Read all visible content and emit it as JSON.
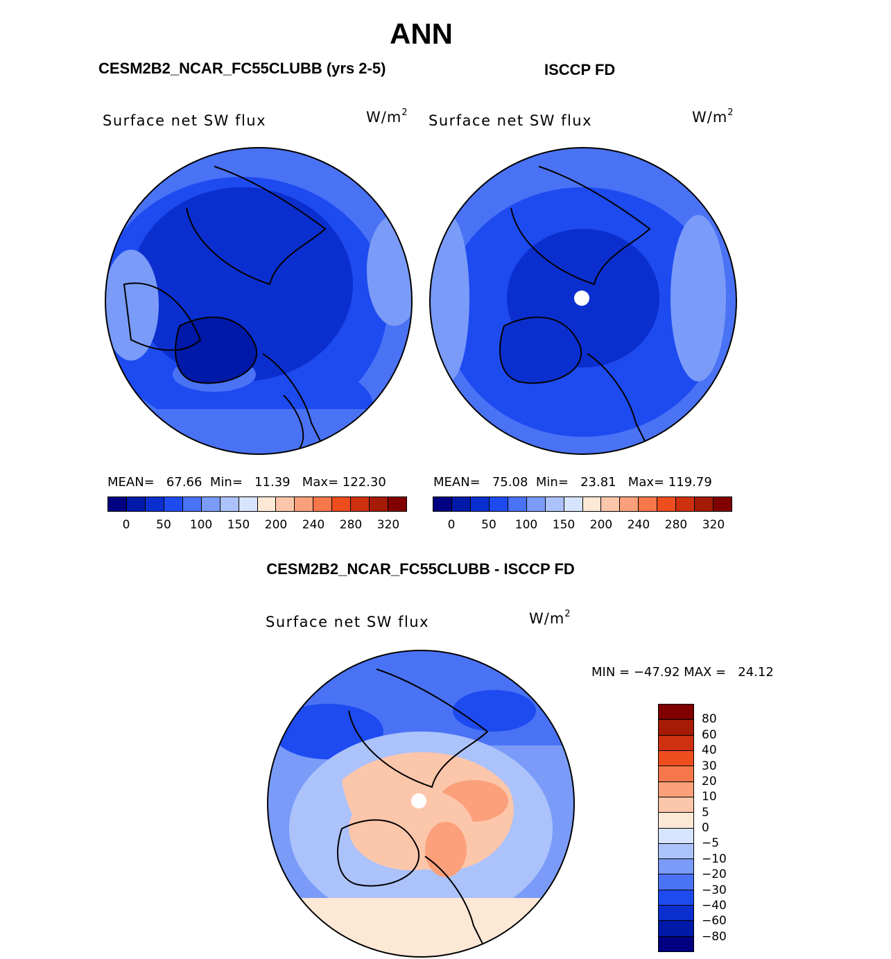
{
  "title": "ANN",
  "panels": {
    "model": {
      "heading": "CESM2B2_NCAR_FC55CLUBB (yrs 2-5)",
      "field": "Surface net SW flux",
      "units": "W/m",
      "units_exp": "2",
      "stats": "MEAN=   67.66  Min=   11.39   Max= 122.30"
    },
    "obs": {
      "heading": "ISCCP FD",
      "field": "Surface net SW flux",
      "units": "W/m",
      "units_exp": "2",
      "stats": "MEAN=   75.08  Min=   23.81   Max= 119.79"
    },
    "diff": {
      "heading": "CESM2B2_NCAR_FC55CLUBB - ISCCP FD",
      "field": "Surface net SW flux",
      "units": "W/m",
      "units_exp": "2",
      "stats": "MIN = −47.92 MAX =   24.12"
    }
  },
  "colorbar_main": {
    "colors": [
      "#000080",
      "#0019a8",
      "#0b2fcf",
      "#1e4bf0",
      "#4a72f5",
      "#7a9bf8",
      "#abc2fb",
      "#d6e4fd",
      "#fde8d6",
      "#fcc6ab",
      "#fba07a",
      "#f6774a",
      "#ee4d1e",
      "#cd3110",
      "#a51b05",
      "#800000"
    ],
    "labels": [
      "0",
      "50",
      "100",
      "150",
      "200",
      "240",
      "280",
      "320"
    ]
  },
  "colorbar_diff": {
    "colors": [
      "#800000",
      "#a51b05",
      "#cd3110",
      "#ee4d1e",
      "#f6774a",
      "#fba07a",
      "#fcc6ab",
      "#fde8d6",
      "#d6e4fd",
      "#abc2fb",
      "#7a9bf8",
      "#4a72f5",
      "#1e4bf0",
      "#0b2fcf",
      "#0019a8",
      "#000080"
    ],
    "labels": [
      "80",
      "60",
      "40",
      "30",
      "20",
      "10",
      "5",
      "0",
      "−5",
      "−10",
      "−20",
      "−30",
      "−40",
      "−60",
      "−80"
    ]
  }
}
